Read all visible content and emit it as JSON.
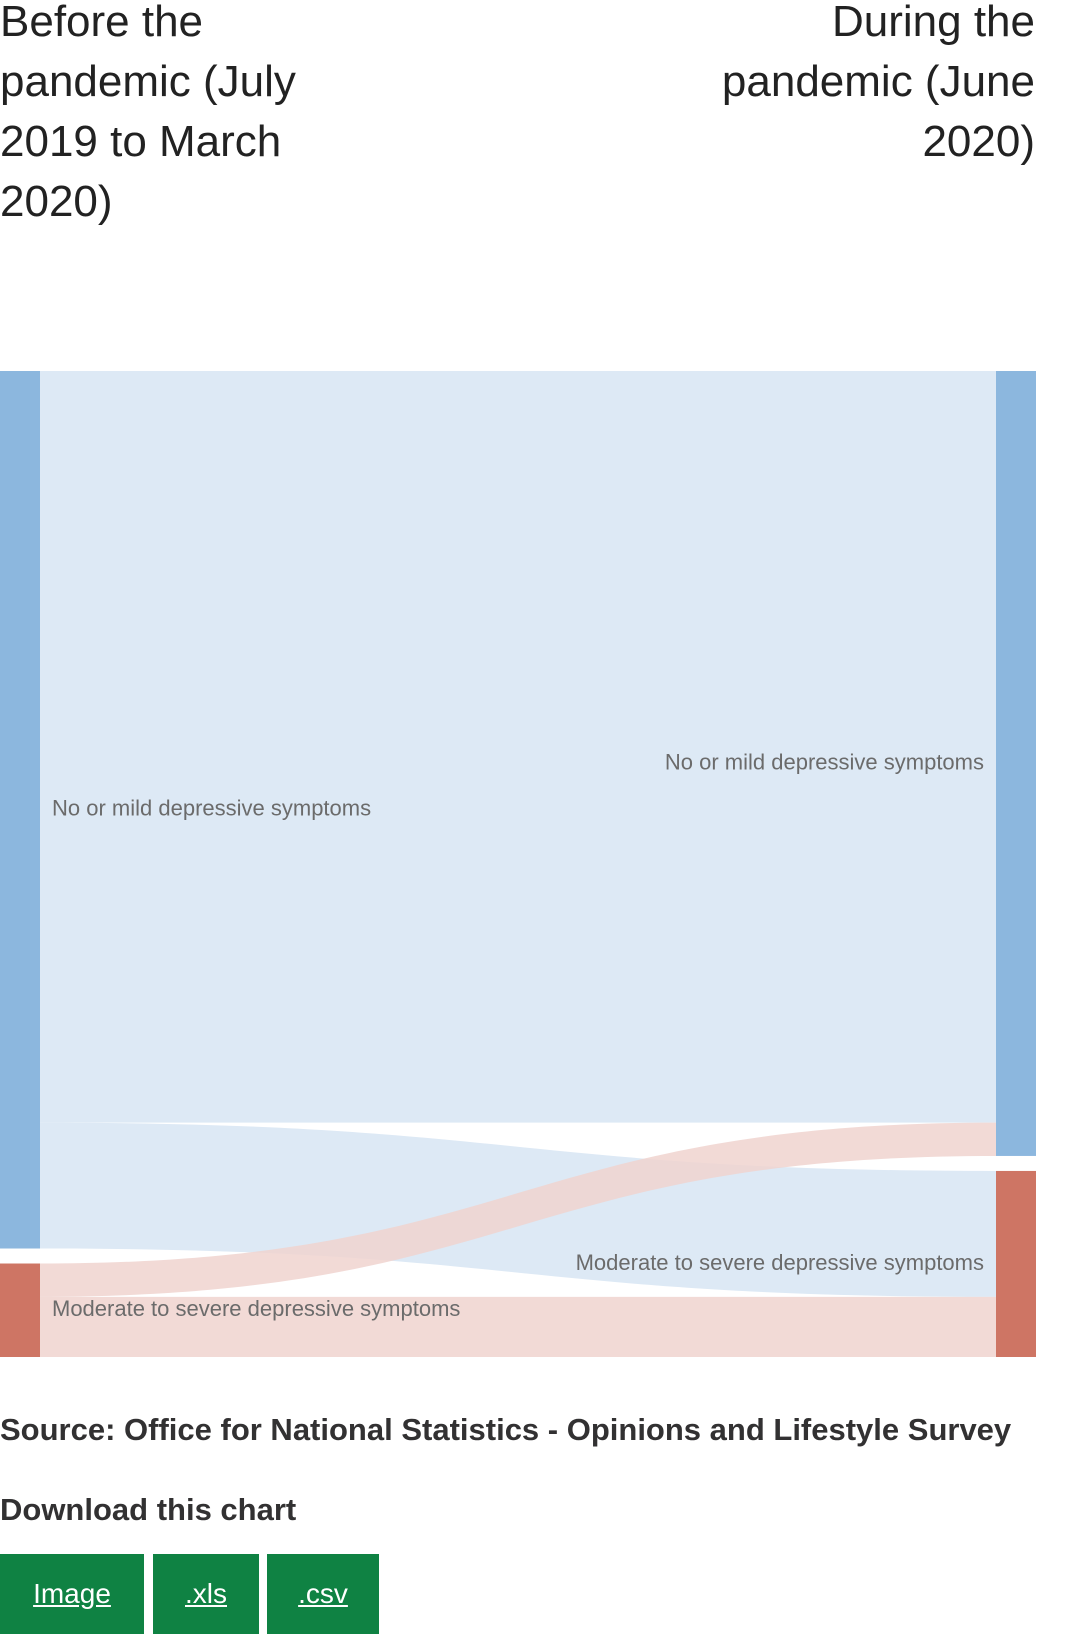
{
  "chart_data": {
    "type": "sankey",
    "columns": [
      "Before the pandemic (July 2019 to March 2020)",
      "During the pandemic (June 2020)"
    ],
    "nodes": [
      {
        "id": "before-mild",
        "column": 0,
        "label": "No or mild depressive symptoms",
        "color": "#8cb7de"
      },
      {
        "id": "before-severe",
        "column": 0,
        "label": "Moderate to severe depressive symptoms",
        "color": "#ce7564"
      },
      {
        "id": "during-mild",
        "column": 1,
        "label": "No or mild depressive symptoms",
        "color": "#8cb7de"
      },
      {
        "id": "during-severe",
        "column": 1,
        "label": "Moderate to severe depressive symptoms",
        "color": "#ce7564"
      }
    ],
    "links": [
      {
        "source": "before-mild",
        "target": "during-mild",
        "value": 81.2,
        "color": "#dde9f5"
      },
      {
        "source": "before-mild",
        "target": "during-severe",
        "value": 13.6,
        "color": "#dde9f5"
      },
      {
        "source": "before-severe",
        "target": "during-mild",
        "value": 3.6,
        "color": "#f0d4cf"
      },
      {
        "source": "before-severe",
        "target": "during-severe",
        "value": 6.5,
        "color": "#f0d4cf"
      }
    ]
  },
  "source": "Source: Office for National Statistics - Opinions and Lifestyle Survey",
  "download": {
    "title": "Download this chart",
    "buttons": [
      ".Image",
      ".xls",
      ".csv"
    ],
    "image_label": "Image",
    "xls_label": ".xls",
    "csv_label": ".csv",
    "button_color": "#0f8243"
  }
}
